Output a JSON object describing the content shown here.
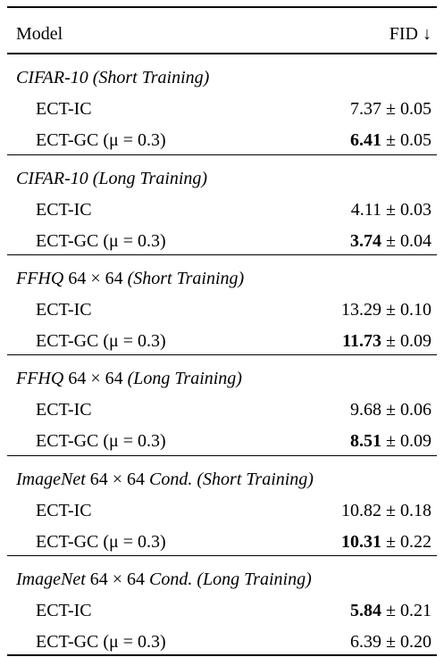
{
  "table": {
    "header": [
      "Model",
      "FID ↓"
    ],
    "sections": [
      {
        "title": [
          {
            "text": "CIFAR-10 (Short Training)",
            "italic": true
          }
        ],
        "rows": [
          {
            "model": "ECT-IC",
            "fid": [
              "7.37",
              "± 0.05"
            ],
            "best": false
          },
          {
            "model": "ECT-GC (μ = 0.3)",
            "fid": [
              "6.41",
              "± 0.05"
            ],
            "best": true
          }
        ]
      },
      {
        "title": [
          {
            "text": "CIFAR-10 (Long Training)",
            "italic": true
          }
        ],
        "rows": [
          {
            "model": "ECT-IC",
            "fid": [
              "4.11",
              "± 0.03"
            ],
            "best": false
          },
          {
            "model": "ECT-GC (μ = 0.3)",
            "fid": [
              "3.74",
              "± 0.04"
            ],
            "best": true
          }
        ]
      },
      {
        "title": [
          {
            "text": "FFHQ",
            "italic": true
          },
          {
            "text": "64 × 64",
            "italic": false
          },
          {
            "text": "(Short Training)",
            "italic": true
          }
        ],
        "rows": [
          {
            "model": "ECT-IC",
            "fid": [
              "13.29",
              "± 0.10"
            ],
            "best": false
          },
          {
            "model": "ECT-GC (μ = 0.3)",
            "fid": [
              "11.73",
              "± 0.09"
            ],
            "best": true
          }
        ]
      },
      {
        "title": [
          {
            "text": "FFHQ",
            "italic": true
          },
          {
            "text": "64 × 64",
            "italic": false
          },
          {
            "text": "(Long Training)",
            "italic": true
          }
        ],
        "rows": [
          {
            "model": "ECT-IC",
            "fid": [
              "9.68",
              "± 0.06"
            ],
            "best": false
          },
          {
            "model": "ECT-GC (μ = 0.3)",
            "fid": [
              "8.51",
              "± 0.09"
            ],
            "best": true
          }
        ]
      },
      {
        "title": [
          {
            "text": "ImageNet",
            "italic": true
          },
          {
            "text": "64 × 64",
            "italic": false
          },
          {
            "text": "Cond. (Short Training)",
            "italic": true
          }
        ],
        "rows": [
          {
            "model": "ECT-IC",
            "fid": [
              "10.82",
              "± 0.18"
            ],
            "best": false
          },
          {
            "model": "ECT-GC (μ = 0.3)",
            "fid": [
              "10.31",
              "± 0.22"
            ],
            "best": true
          }
        ]
      },
      {
        "title": [
          {
            "text": "ImageNet",
            "italic": true
          },
          {
            "text": "64 × 64",
            "italic": false
          },
          {
            "text": "Cond. (Long Training)",
            "italic": true
          }
        ],
        "rows": [
          {
            "model": "ECT-IC",
            "fid": [
              "5.84",
              "± 0.21"
            ],
            "best": true
          },
          {
            "model": "ECT-GC (μ = 0.3)",
            "fid": [
              "6.39",
              "± 0.20"
            ],
            "best": false
          }
        ]
      }
    ]
  }
}
